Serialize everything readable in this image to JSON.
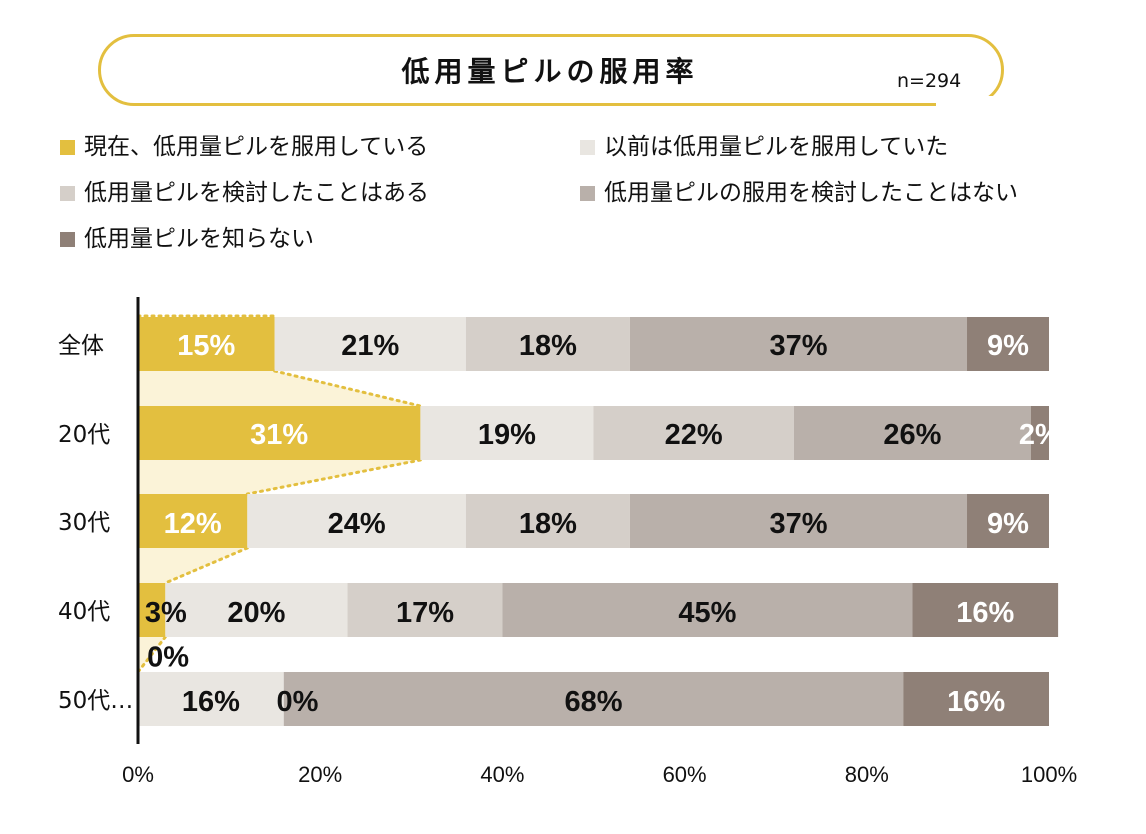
{
  "chart_data": {
    "type": "bar",
    "orientation": "horizontal",
    "stacked": true,
    "title": "低用量ピルの服用率",
    "sample_size": "n=294",
    "categories": [
      "全体",
      "20代",
      "30代",
      "40代",
      "50代…"
    ],
    "series": [
      {
        "name": "現在、低用量ピルを服用している",
        "color": "#e3bf3f",
        "label_color": "#ffffff",
        "values": [
          15,
          31,
          12,
          3,
          0
        ],
        "labels": [
          "15%",
          "31%",
          "12%",
          "3%",
          "0%"
        ]
      },
      {
        "name": "以前は低用量ピルを服用していた",
        "color": "#e9e6e1",
        "label_color": "#111111",
        "values": [
          21,
          19,
          24,
          20,
          16
        ],
        "labels": [
          "21%",
          "19%",
          "24%",
          "20%",
          "16%"
        ]
      },
      {
        "name": "低用量ピルを検討したことはある",
        "color": "#d5cfc9",
        "label_color": "#111111",
        "values": [
          18,
          22,
          18,
          17,
          0
        ],
        "labels": [
          "18%",
          "22%",
          "18%",
          "17%",
          "0%"
        ]
      },
      {
        "name": "低用量ピルの服用を検討したことはない",
        "color": "#b9b0aa",
        "label_color": "#111111",
        "values": [
          37,
          26,
          37,
          45,
          68
        ],
        "labels": [
          "37%",
          "26%",
          "37%",
          "45%",
          "68%"
        ]
      },
      {
        "name": "低用量ピルを知らない",
        "color": "#8f8077",
        "label_color": "#ffffff",
        "values": [
          9,
          2,
          9,
          16,
          16
        ],
        "labels": [
          "9%",
          "2%",
          "9%",
          "16%",
          "16%"
        ]
      }
    ],
    "xlim": [
      0,
      100
    ],
    "xticks": [
      "0%",
      "20%",
      "40%",
      "60%",
      "80%",
      "100%"
    ],
    "legend_position": "top",
    "highlight": "dotted connectors linking the first segment of adjacent bars"
  }
}
